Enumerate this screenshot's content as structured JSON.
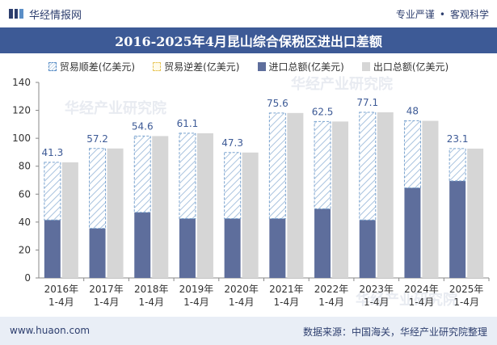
{
  "header": {
    "brand": "华经情报网",
    "tagline_left": "专业严谨",
    "tagline_sep": "•",
    "tagline_right": "客观科学"
  },
  "title": "2016-2025年4月昆山综合保税区进出口差额",
  "legend": {
    "surplus": "贸易顺差(亿美元)",
    "deficit": "贸易逆差(亿美元)",
    "import": "进口总额(亿美元)",
    "export": "出口总额(亿美元)"
  },
  "watermark": "华经产业研究院",
  "footer": {
    "url": "www.huaon.com",
    "source": "数据来源：中国海关，华经产业研究院整理"
  },
  "colors": {
    "import": "#5e6e9c",
    "export": "#d6d6d6",
    "surplus_stroke": "#7aa3cf",
    "label": "#3d5a96"
  },
  "chart_data": {
    "type": "bar",
    "title": "2016-2025年4月昆山综合保税区进出口差额",
    "categories": [
      "2016年\n1-4月",
      "2017年\n1-4月",
      "2018年\n1-4月",
      "2019年\n1-4月",
      "2020年\n1-4月",
      "2021年\n1-4月",
      "2022年\n1-4月",
      "2023年\n1-4月",
      "2024年\n1-4月",
      "2025年\n1-4月"
    ],
    "series": [
      {
        "name": "进口总额(亿美元)",
        "values": [
          41.5,
          35.5,
          47,
          42.5,
          42.5,
          42.5,
          49.5,
          41.5,
          64.5,
          69.5
        ]
      },
      {
        "name": "出口总额(亿美元)",
        "values": [
          82.8,
          92.7,
          101.6,
          103.6,
          89.8,
          118.1,
          112,
          118.6,
          112.5,
          92.6
        ]
      },
      {
        "name": "贸易顺差(亿美元)",
        "values": [
          41.3,
          57.2,
          54.6,
          61.1,
          47.3,
          75.6,
          62.5,
          77.1,
          48,
          23.1
        ]
      }
    ],
    "ylim": [
      0,
      140
    ],
    "yticks": [
      0,
      20,
      40,
      60,
      80,
      100,
      120,
      140
    ],
    "xlabel": "",
    "ylabel": ""
  }
}
